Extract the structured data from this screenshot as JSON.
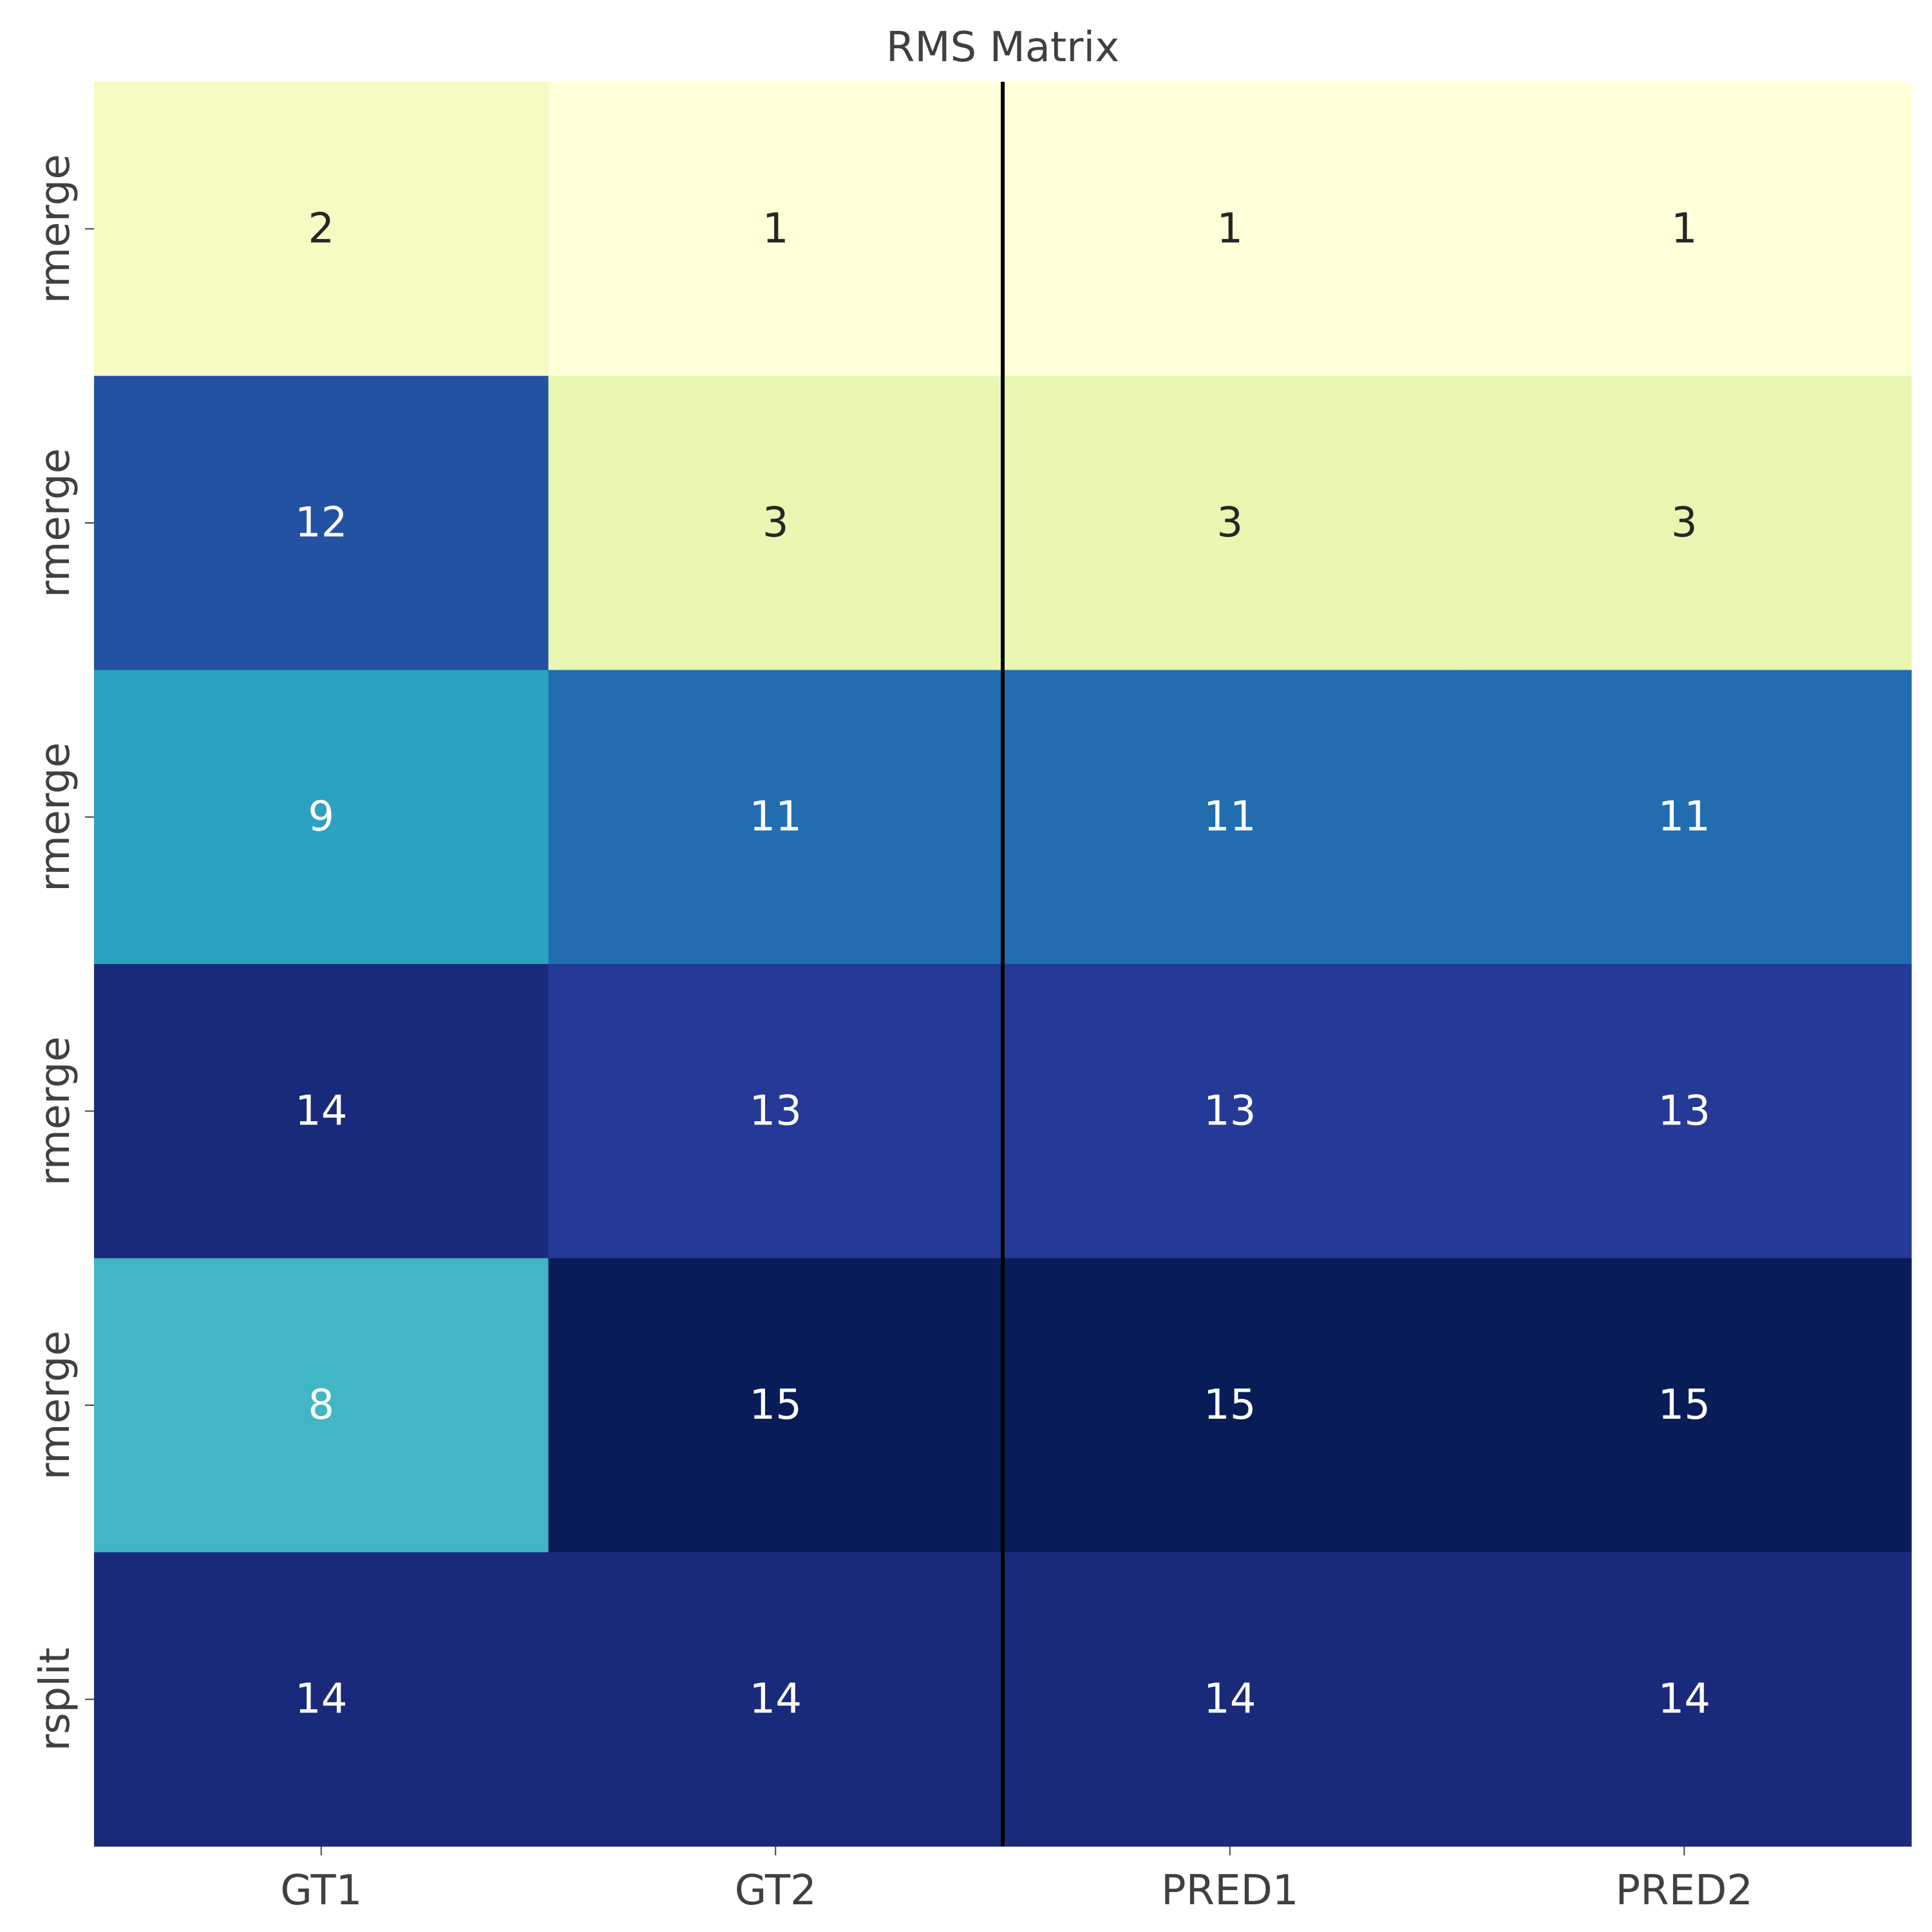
{
  "chart_data": {
    "type": "heatmap",
    "title": "RMS Matrix",
    "xlabel": "",
    "ylabel": "",
    "columns": [
      "GT1",
      "GT2",
      "PRED1",
      "PRED2"
    ],
    "rows": [
      "rmerge",
      "rmerge",
      "rmerge",
      "rmerge",
      "rmerge",
      "rsplit"
    ],
    "values": [
      [
        2,
        1,
        1,
        1
      ],
      [
        12,
        3,
        3,
        3
      ],
      [
        9,
        11,
        11,
        11
      ],
      [
        14,
        13,
        13,
        13
      ],
      [
        8,
        15,
        15,
        15
      ],
      [
        14,
        14,
        14,
        14
      ]
    ],
    "value_range": [
      1,
      15
    ],
    "colormap": "YlGnBu",
    "divider_after_column": 1,
    "divider_color": "#000000",
    "grid": false
  }
}
